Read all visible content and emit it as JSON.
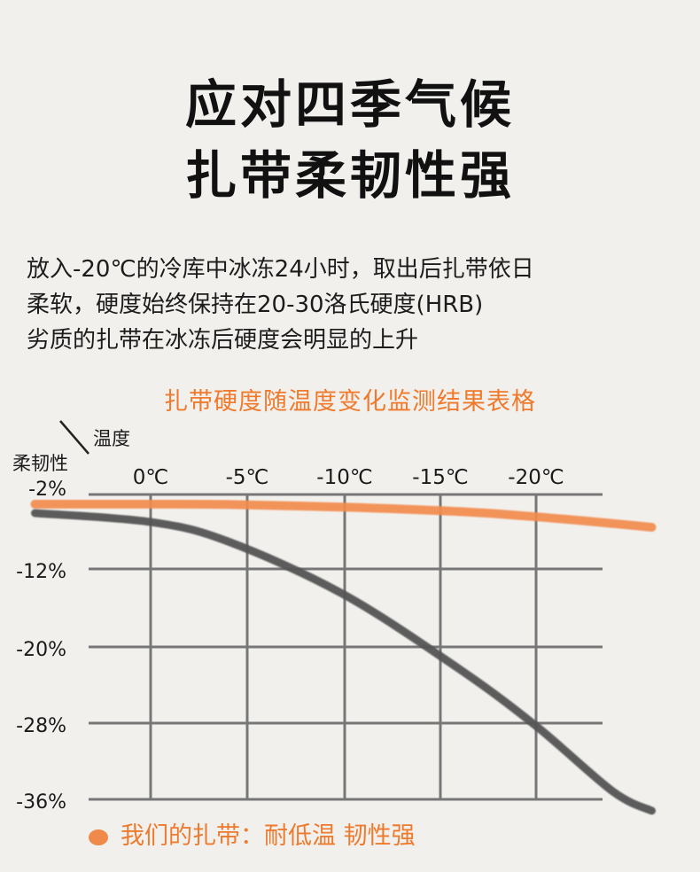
{
  "headline": {
    "line1": "应对四季气候",
    "line2": "扎带柔韧性强"
  },
  "description": [
    "放入-20℃的冷库中冰冻24小时，取出后扎带依日",
    "柔软，硬度始终保持在20-30洛氏硬度(HRB)",
    "劣质的扎带在冰冻后硬度会明显的上升"
  ],
  "legend": {
    "label": "我们的扎带：耐低温 韧性强",
    "dot_color": "#f08a4a"
  },
  "chart_data": {
    "type": "line",
    "title": "扎带硬度随温度变化监测结果表格",
    "xlabel": "温度",
    "ylabel": "柔韧性",
    "categories": [
      "0℃",
      "-5℃",
      "-10℃",
      "-15℃",
      "-20℃"
    ],
    "y_ticks": [
      "-2%",
      "-12%",
      "-20%",
      "-28%",
      "-36%"
    ],
    "y_tick_values": [
      -2,
      -12,
      -20,
      -28,
      -36
    ],
    "ylim": [
      -36,
      -2
    ],
    "grid": true,
    "series": [
      {
        "name": "我们的扎带：耐低温 韧性强",
        "color": "#f28c4e",
        "x": [
          -30,
          0,
          20,
          50,
          80,
          100,
          120,
          130
        ],
        "values": [
          -3.3,
          -3.3,
          -3.35,
          -3.7,
          -4.3,
          -5.0,
          -5.9,
          -6.4
        ]
      },
      {
        "color": "#555555",
        "x": [
          -30,
          0,
          20,
          50,
          80,
          100,
          120,
          130
        ],
        "values": [
          -4.5,
          -5.7,
          -8.3,
          -14.6,
          -22.3,
          -28.3,
          -35.2,
          -37.2
        ]
      }
    ]
  }
}
